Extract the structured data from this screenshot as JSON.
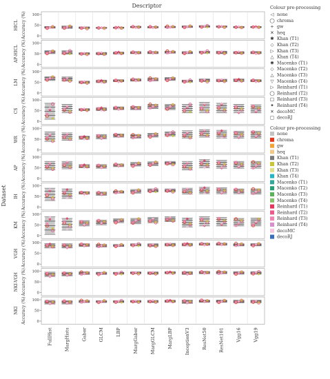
{
  "chart_data": {
    "type": "box-grid",
    "title": "Descriptor",
    "row_axis_label": "Dataset",
    "ylabel": "Accuracy (%)",
    "ylim": [
      0,
      100
    ],
    "yticks": [
      0,
      50,
      100
    ],
    "descriptors": [
      "FullHist",
      "MargHists",
      "Gabor",
      "GLCM",
      "LBP",
      "MargGabor",
      "MargGLCM",
      "MargLBP",
      "InceptionV3",
      "ResNet50",
      "ResNet101",
      "Vgg16",
      "Vgg19"
    ],
    "datasets": [
      "HICL",
      "AP-HICL",
      "LM",
      "CS",
      "WR",
      "AP",
      "IH",
      "KM",
      "VGH",
      "NKI-VGH",
      "NKI"
    ],
    "box_ranges": [
      [
        [
          36,
          44
        ],
        [
          35,
          46
        ],
        [
          34,
          42
        ],
        [
          35,
          40
        ],
        [
          35,
          41
        ],
        [
          38,
          45
        ],
        [
          37,
          44
        ],
        [
          38,
          45
        ],
        [
          39,
          47
        ],
        [
          40,
          48
        ],
        [
          40,
          47
        ],
        [
          38,
          44
        ],
        [
          38,
          44
        ]
      ],
      [
        [
          50,
          64
        ],
        [
          48,
          64
        ],
        [
          46,
          55
        ],
        [
          45,
          56
        ],
        [
          48,
          58
        ],
        [
          50,
          60
        ],
        [
          50,
          60
        ],
        [
          52,
          62
        ],
        [
          50,
          60
        ],
        [
          52,
          62
        ],
        [
          50,
          62
        ],
        [
          50,
          60
        ],
        [
          50,
          60
        ]
      ],
      [
        [
          58,
          76
        ],
        [
          55,
          75
        ],
        [
          45,
          55
        ],
        [
          48,
          60
        ],
        [
          52,
          62
        ],
        [
          55,
          66
        ],
        [
          56,
          70
        ],
        [
          58,
          72
        ],
        [
          50,
          60
        ],
        [
          52,
          65
        ],
        [
          52,
          64
        ],
        [
          52,
          65
        ],
        [
          52,
          62
        ]
      ],
      [
        [
          10,
          85
        ],
        [
          40,
          80
        ],
        [
          50,
          60
        ],
        [
          50,
          65
        ],
        [
          55,
          68
        ],
        [
          55,
          70
        ],
        [
          60,
          80
        ],
        [
          55,
          80
        ],
        [
          40,
          80
        ],
        [
          40,
          90
        ],
        [
          40,
          85
        ],
        [
          40,
          80
        ],
        [
          40,
          78
        ]
      ],
      [
        [
          40,
          85
        ],
        [
          45,
          80
        ],
        [
          50,
          65
        ],
        [
          52,
          72
        ],
        [
          60,
          75
        ],
        [
          55,
          72
        ],
        [
          60,
          78
        ],
        [
          65,
          85
        ],
        [
          55,
          90
        ],
        [
          60,
          95
        ],
        [
          55,
          92
        ],
        [
          55,
          88
        ],
        [
          55,
          88
        ]
      ],
      [
        [
          40,
          80
        ],
        [
          45,
          80
        ],
        [
          50,
          65
        ],
        [
          48,
          65
        ],
        [
          55,
          68
        ],
        [
          58,
          75
        ],
        [
          60,
          78
        ],
        [
          65,
          80
        ],
        [
          40,
          80
        ],
        [
          50,
          88
        ],
        [
          48,
          85
        ],
        [
          48,
          80
        ],
        [
          48,
          80
        ]
      ],
      [
        [
          30,
          88
        ],
        [
          40,
          85
        ],
        [
          60,
          72
        ],
        [
          55,
          70
        ],
        [
          65,
          75
        ],
        [
          65,
          82
        ],
        [
          70,
          85
        ],
        [
          70,
          85
        ],
        [
          60,
          88
        ],
        [
          62,
          92
        ],
        [
          62,
          90
        ],
        [
          62,
          85
        ],
        [
          60,
          85
        ]
      ],
      [
        [
          5,
          88
        ],
        [
          25,
          80
        ],
        [
          45,
          70
        ],
        [
          50,
          72
        ],
        [
          60,
          78
        ],
        [
          55,
          80
        ],
        [
          60,
          85
        ],
        [
          65,
          88
        ],
        [
          40,
          82
        ],
        [
          45,
          88
        ],
        [
          45,
          85
        ],
        [
          45,
          80
        ],
        [
          45,
          82
        ]
      ],
      [
        [
          75,
          96
        ],
        [
          75,
          95
        ],
        [
          82,
          95
        ],
        [
          80,
          92
        ],
        [
          82,
          92
        ],
        [
          85,
          95
        ],
        [
          82,
          95
        ],
        [
          85,
          97
        ],
        [
          85,
          97
        ],
        [
          88,
          98
        ],
        [
          88,
          98
        ],
        [
          85,
          96
        ],
        [
          85,
          96
        ]
      ],
      [
        [
          75,
          96
        ],
        [
          78,
          95
        ],
        [
          85,
          97
        ],
        [
          85,
          95
        ],
        [
          86,
          95
        ],
        [
          88,
          97
        ],
        [
          86,
          97
        ],
        [
          88,
          98
        ],
        [
          85,
          98
        ],
        [
          88,
          99
        ],
        [
          88,
          99
        ],
        [
          86,
          98
        ],
        [
          86,
          98
        ]
      ],
      [
        [
          80,
          97
        ],
        [
          80,
          96
        ],
        [
          87,
          97
        ],
        [
          87,
          96
        ],
        [
          87,
          96
        ],
        [
          88,
          97
        ],
        [
          87,
          97
        ],
        [
          88,
          98
        ],
        [
          83,
          98
        ],
        [
          88,
          99
        ],
        [
          88,
          99
        ],
        [
          86,
          98
        ],
        [
          86,
          98
        ]
      ]
    ],
    "legend_markers": {
      "title": "Colour pre-processing",
      "entries": [
        {
          "label": "none",
          "symbol": "◁"
        },
        {
          "label": "chroma",
          "symbol": "◯"
        },
        {
          "label": "gw",
          "symbol": "+"
        },
        {
          "label": "heq",
          "symbol": "✕"
        },
        {
          "label": "Khan (T1)",
          "symbol": "✱"
        },
        {
          "label": "Khan (T2)",
          "symbol": "◇"
        },
        {
          "label": "Khan (T3)",
          "symbol": "▷"
        },
        {
          "label": "Khan (T4)",
          "symbol": "△"
        },
        {
          "label": "Macenko (T1)",
          "symbol": "✱"
        },
        {
          "label": "Macenko (T2)",
          "symbol": "◇"
        },
        {
          "label": "Macenko (T3)",
          "symbol": "△"
        },
        {
          "label": "Macenko (T4)",
          "symbol": "▽"
        },
        {
          "label": "Reinhard (T1)",
          "symbol": "▷"
        },
        {
          "label": "Reinhard (T2)",
          "symbol": "◯"
        },
        {
          "label": "Reinhard (T3)",
          "symbol": "□"
        },
        {
          "label": "Reinhard (T4)",
          "symbol": "✦"
        },
        {
          "label": "decoMC",
          "symbol": "✕"
        },
        {
          "label": "decoRJ",
          "symbol": "□"
        }
      ]
    },
    "legend_colours": {
      "title": "Colour pre-processing",
      "entries": [
        {
          "label": "none",
          "color": "#c4c4c4"
        },
        {
          "label": "chroma",
          "color": "#e03a1e"
        },
        {
          "label": "gw",
          "color": "#f2a23a"
        },
        {
          "label": "heq",
          "color": "#efc98c"
        },
        {
          "label": "Khan (T1)",
          "color": "#7a7a7a"
        },
        {
          "label": "Khan (T2)",
          "color": "#c8c437"
        },
        {
          "label": "Khan (T3)",
          "color": "#dfe08a"
        },
        {
          "label": "Khan (T4)",
          "color": "#27b5c3"
        },
        {
          "label": "Macenko (T1)",
          "color": "#33a89a"
        },
        {
          "label": "Macenko (T2)",
          "color": "#2b9e77"
        },
        {
          "label": "Macenko (T3)",
          "color": "#5db35a"
        },
        {
          "label": "Macenko (T4)",
          "color": "#86c16b"
        },
        {
          "label": "Reinhard (T1)",
          "color": "#e2365b"
        },
        {
          "label": "Reinhard (T2)",
          "color": "#e85c8a"
        },
        {
          "label": "Reinhard (T3)",
          "color": "#ef86b1"
        },
        {
          "label": "Reinhard (T4)",
          "color": "#d98ed2"
        },
        {
          "label": "decoMC",
          "color": "#f5c6de"
        },
        {
          "label": "decoRJ",
          "color": "#3b6fb6"
        }
      ]
    }
  }
}
